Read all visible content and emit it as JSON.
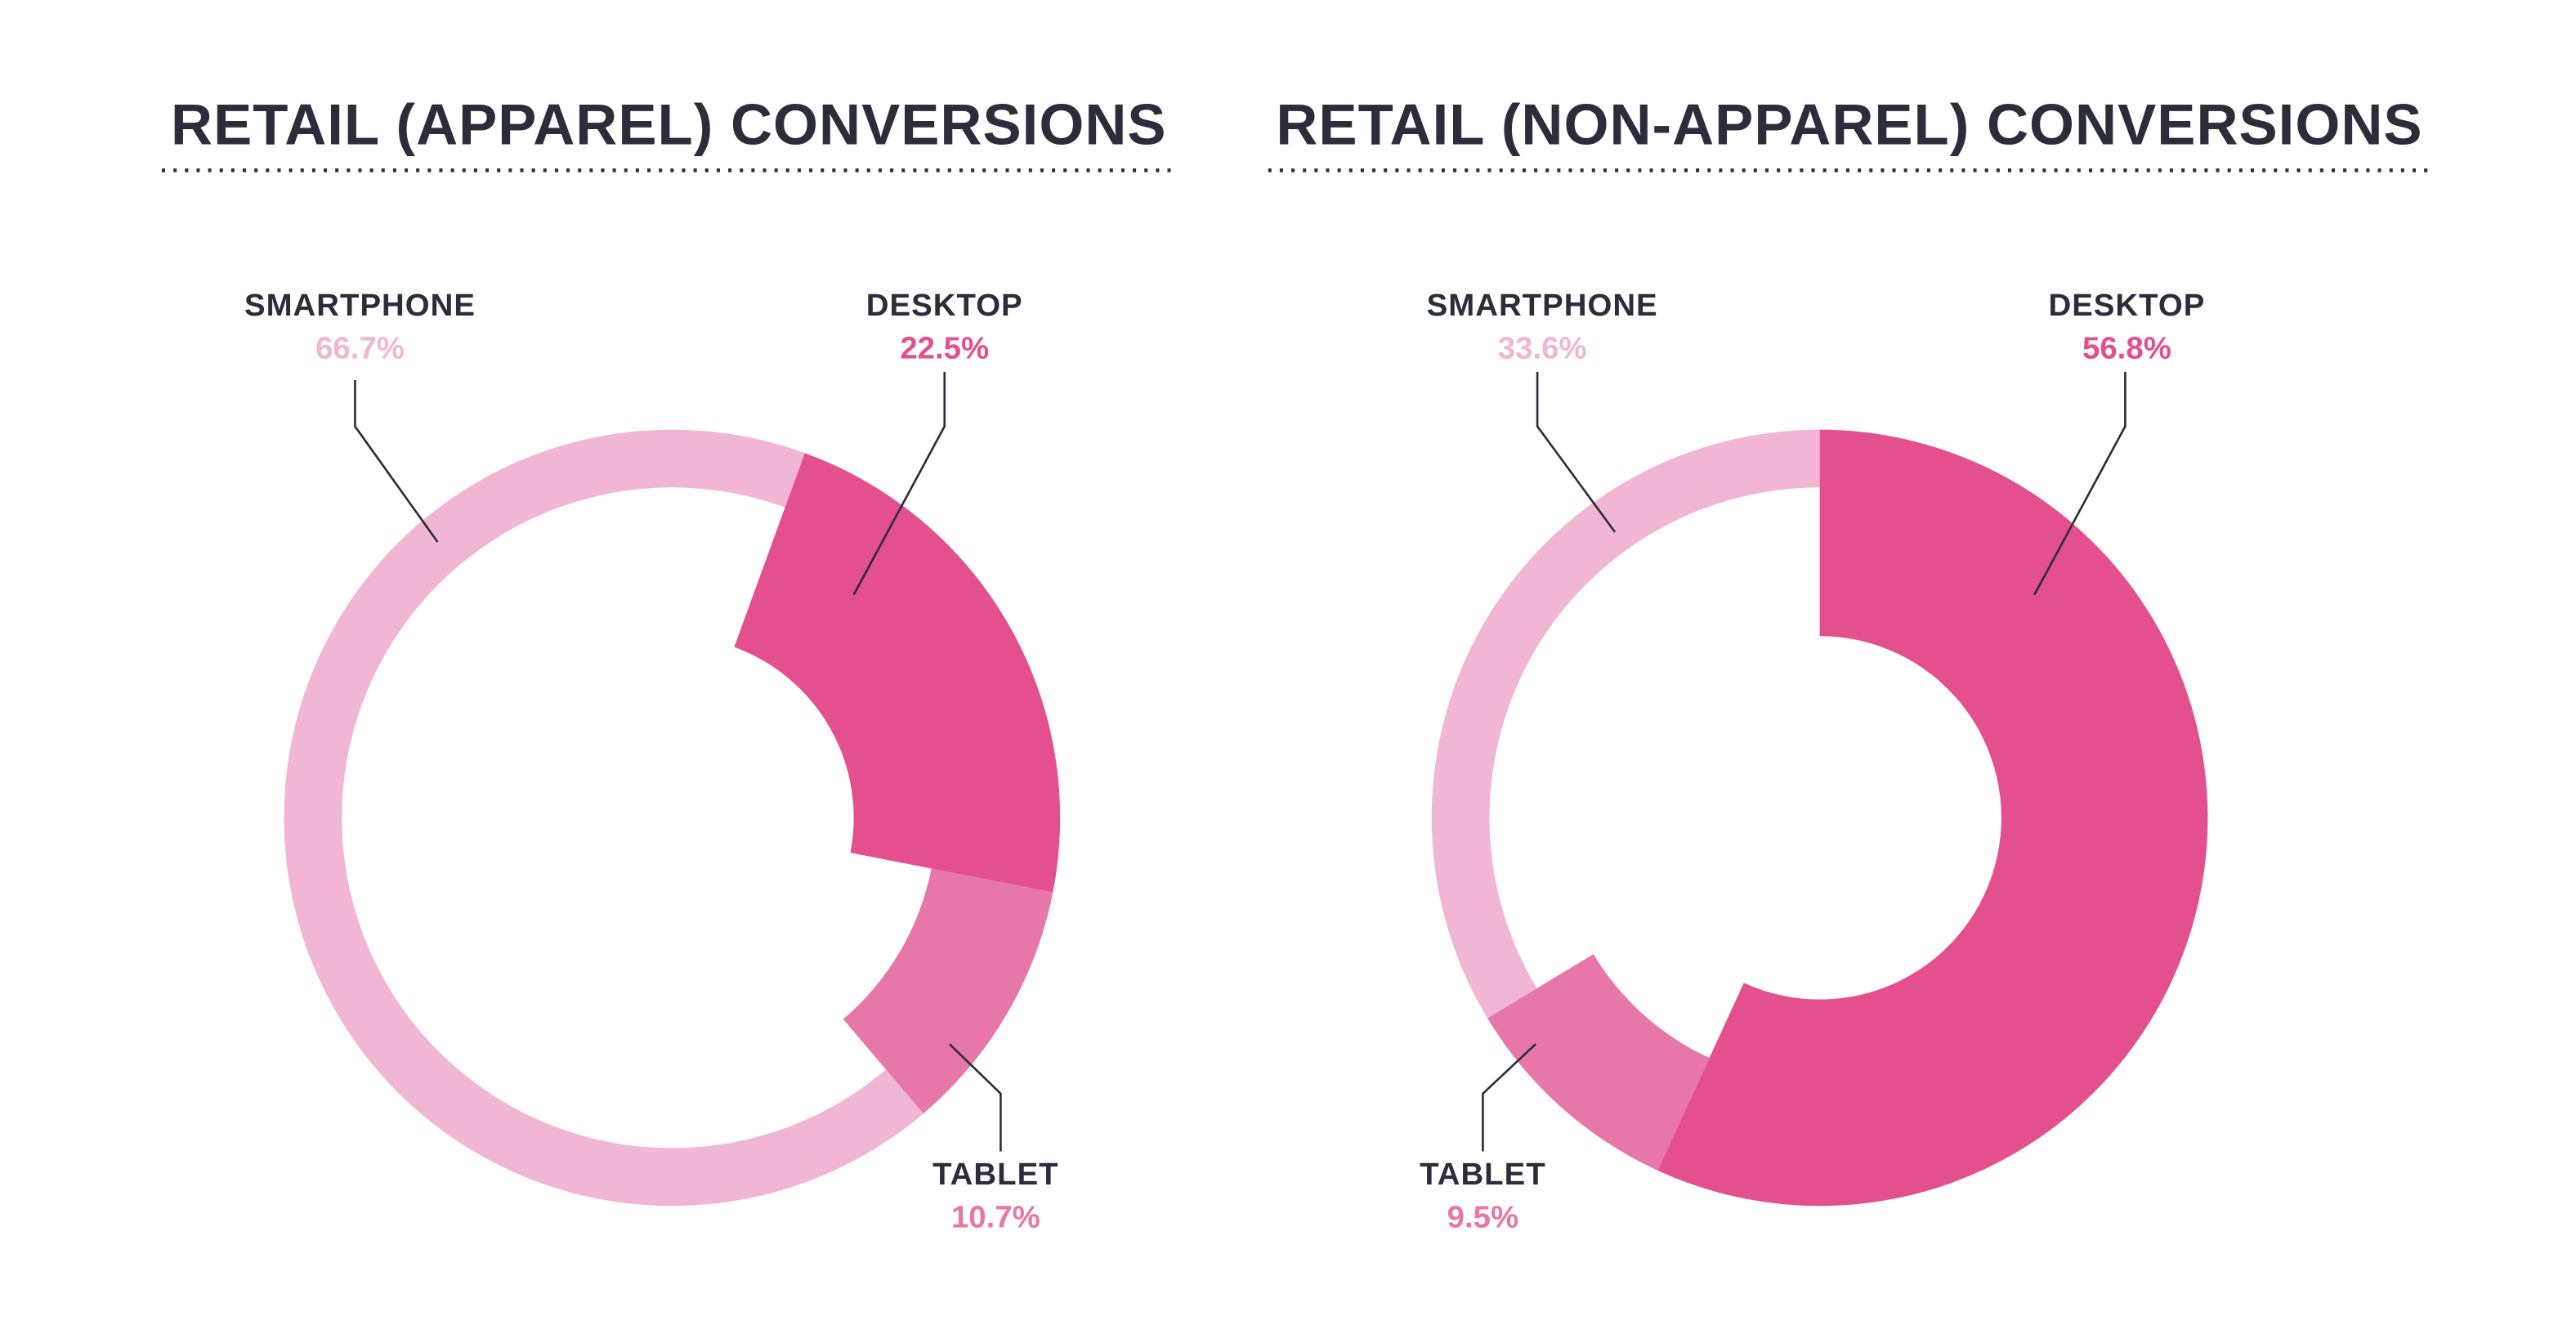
{
  "chart_data": [
    {
      "type": "pie",
      "title": "RETAIL (APPAREL) CONVERSIONS",
      "categories": [
        "SMARTPHONE",
        "DESKTOP",
        "TABLET"
      ],
      "values": [
        66.7,
        22.5,
        10.7
      ],
      "value_labels": [
        "66.7%",
        "22.5%",
        "10.7%"
      ],
      "colors": [
        "#f0b6d3",
        "#e4508e",
        "#e877a9"
      ]
    },
    {
      "type": "pie",
      "title": "RETAIL (NON-APPAREL) CONVERSIONS",
      "categories": [
        "SMARTPHONE",
        "DESKTOP",
        "TABLET"
      ],
      "values": [
        33.6,
        56.8,
        9.5
      ],
      "value_labels": [
        "33.6%",
        "56.8%",
        "9.5%"
      ],
      "colors": [
        "#f0b6d3",
        "#e4508e",
        "#e877a9"
      ]
    }
  ]
}
